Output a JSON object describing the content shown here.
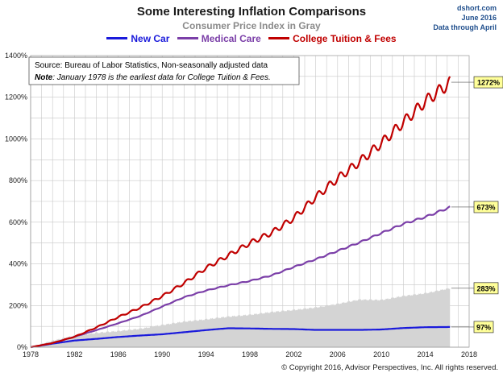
{
  "header": {
    "title": "Some Interesting Inflation Comparisons",
    "subtitle": "Consumer Price Index in Gray",
    "source_site": "dshort.com",
    "date_line": "June 2016",
    "data_note": "Data through April"
  },
  "note_box": {
    "line1": "Source:  Bureau of Labor Statistics, Non-seasonally adjusted data",
    "line2_bold": "Note",
    "line2_rest": ": January  1978 is the earliest data for College Tuition & Fees."
  },
  "footer": {
    "copyright": "© Copyright 2016, Advisor Perspectives, Inc. All rights reserved."
  },
  "colors": {
    "new_car": "#1a1adb",
    "medical": "#7b3fa8",
    "college": "#c00000",
    "cpi_fill": "#d4d4d4",
    "grid": "#c8c8c8",
    "end_label_bg": "#ffff99"
  },
  "chart_data": {
    "type": "line",
    "title": "Some Interesting Inflation Comparisons",
    "subtitle": "Consumer Price Index in Gray",
    "xlim": [
      1978,
      2018
    ],
    "ylim": [
      0,
      1400
    ],
    "x_ticks": [
      1978,
      1982,
      1986,
      1990,
      1994,
      1998,
      2002,
      2006,
      2010,
      2014,
      2018
    ],
    "x_tick_labels": [
      "1978",
      "1982",
      "1986",
      "1990",
      "1994",
      "1998",
      "2002",
      "2006",
      "2010",
      "2014",
      "2018"
    ],
    "y_ticks": [
      0,
      200,
      400,
      600,
      800,
      1000,
      1200,
      1400
    ],
    "y_tick_labels": [
      "0%",
      "200%",
      "400%",
      "600%",
      "800%",
      "1000%",
      "1200%",
      "1400%"
    ],
    "grid": true,
    "legend_position": "top-center",
    "series": [
      {
        "name": "New Car",
        "color": "#1a1adb",
        "x": [
          1978,
          1980,
          1982,
          1984,
          1986,
          1988,
          1990,
          1992,
          1994,
          1996,
          1998,
          2000,
          2002,
          2004,
          2006,
          2008,
          2010,
          2012,
          2014,
          2016.3
        ],
        "y": [
          0,
          17,
          32,
          40,
          49,
          56,
          62,
          72,
          82,
          91,
          90,
          88,
          87,
          83,
          83,
          83,
          85,
          92,
          96,
          97
        ],
        "end_label": "97%"
      },
      {
        "name": "Medical Care",
        "color": "#7b3fa8",
        "x": [
          1978,
          1980,
          1982,
          1984,
          1986,
          1988,
          1990,
          1992,
          1994,
          1996,
          1998,
          2000,
          2002,
          2004,
          2006,
          2008,
          2010,
          2012,
          2014,
          2016.3
        ],
        "y": [
          0,
          20,
          50,
          82,
          115,
          150,
          195,
          240,
          272,
          297,
          318,
          345,
          385,
          422,
          462,
          503,
          548,
          592,
          625,
          673
        ],
        "end_label": "673%"
      },
      {
        "name": "College Tuition & Fees",
        "color": "#c00000",
        "x": [
          1978,
          1980,
          1982,
          1984,
          1986,
          1988,
          1990,
          1992,
          1994,
          1996,
          1998,
          2000,
          2002,
          2004,
          2006,
          2008,
          2010,
          2012,
          2014,
          2016.3
        ],
        "y": [
          0,
          20,
          50,
          95,
          145,
          190,
          245,
          308,
          380,
          440,
          500,
          550,
          620,
          720,
          810,
          890,
          980,
          1080,
          1180,
          1272
        ],
        "end_label": "1272%"
      },
      {
        "name": "Consumer Price Index",
        "color": "#d4d4d4",
        "x": [
          1978,
          1980,
          1982,
          1984,
          1986,
          1988,
          1990,
          1992,
          1994,
          1996,
          1998,
          2000,
          2002,
          2004,
          2006,
          2008,
          2010,
          2012,
          2014,
          2016.3
        ],
        "y": [
          0,
          30,
          55,
          68,
          77,
          88,
          106,
          122,
          133,
          146,
          155,
          168,
          178,
          190,
          207,
          228,
          226,
          245,
          258,
          283
        ],
        "end_label": "283%"
      }
    ]
  }
}
